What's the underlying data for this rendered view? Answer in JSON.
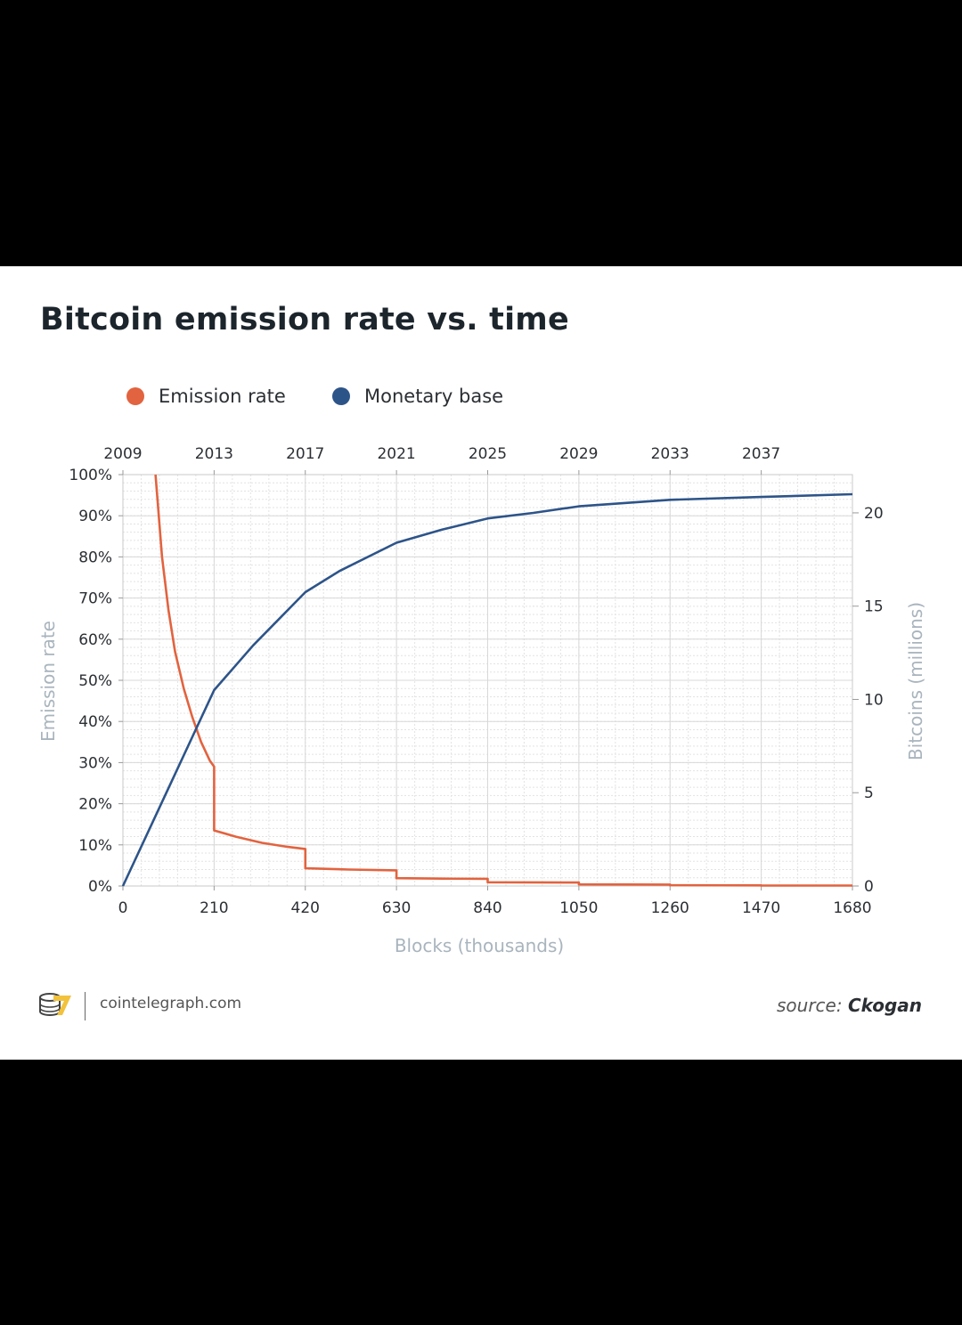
{
  "chart_data": {
    "type": "line",
    "title": "Bitcoin emission rate vs. time",
    "xlabel": "Blocks (thousands)",
    "ylabel_left": "Emission rate",
    "ylabel_right": "Bitcoins (millions)",
    "xlim": [
      0,
      1680
    ],
    "ylim_left": [
      0,
      100
    ],
    "ylim_right": [
      0,
      21
    ],
    "x_ticks": [
      "0",
      "210",
      "420",
      "630",
      "840",
      "1050",
      "1260",
      "1470",
      "1680"
    ],
    "top_axis_ticks": [
      "2009",
      "2013",
      "2017",
      "2021",
      "2025",
      "2029",
      "2033",
      "2037"
    ],
    "left_ticks": [
      "0%",
      "10%",
      "20%",
      "30%",
      "40%",
      "50%",
      "60%",
      "70%",
      "80%",
      "90%",
      "100%"
    ],
    "right_ticks": [
      "0",
      "5",
      "10",
      "15",
      "20"
    ],
    "grid": true,
    "legend_position": "top-left",
    "series": [
      {
        "name": "Emission rate",
        "color": "#e2633f",
        "axis": "left",
        "points": [
          [
            75,
            100
          ],
          [
            90,
            80
          ],
          [
            105,
            67
          ],
          [
            120,
            57
          ],
          [
            140,
            48
          ],
          [
            160,
            41
          ],
          [
            180,
            35
          ],
          [
            200,
            30.5
          ],
          [
            210,
            29
          ],
          [
            210,
            13.5
          ],
          [
            260,
            12
          ],
          [
            320,
            10.5
          ],
          [
            380,
            9.5
          ],
          [
            420,
            9
          ],
          [
            420,
            4.3
          ],
          [
            520,
            4
          ],
          [
            630,
            3.8
          ],
          [
            630,
            1.9
          ],
          [
            735,
            1.8
          ],
          [
            840,
            1.75
          ],
          [
            840,
            0.9
          ],
          [
            1050,
            0.85
          ],
          [
            1050,
            0.4
          ],
          [
            1260,
            0.35
          ],
          [
            1260,
            0.2
          ],
          [
            1470,
            0.15
          ],
          [
            1470,
            0.1
          ],
          [
            1680,
            0.1
          ]
        ]
      },
      {
        "name": "Monetary base",
        "color": "#2d5489",
        "axis": "right",
        "points": [
          [
            0,
            0
          ],
          [
            210,
            10.5
          ],
          [
            300,
            12.9
          ],
          [
            420,
            15.75
          ],
          [
            500,
            16.9
          ],
          [
            630,
            18.4
          ],
          [
            735,
            19.1
          ],
          [
            840,
            19.7
          ],
          [
            945,
            20.0
          ],
          [
            1050,
            20.35
          ],
          [
            1260,
            20.7
          ],
          [
            1470,
            20.85
          ],
          [
            1680,
            21.0
          ]
        ]
      }
    ]
  },
  "footer": {
    "site": "cointelegraph.com",
    "source_label": "source:",
    "source_name": "Ckogan"
  }
}
